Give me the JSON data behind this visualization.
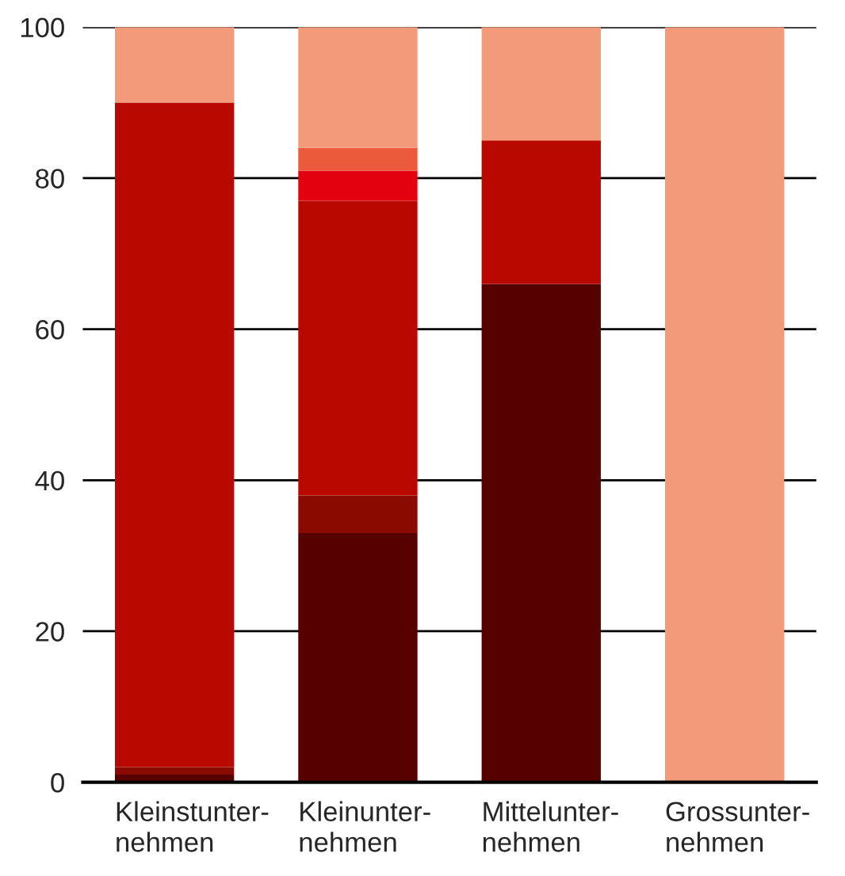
{
  "chart_data": {
    "type": "bar",
    "stacked": true,
    "categories": [
      "Kleinstunter-\nnehmen",
      "Kleinunter-\nnehmen",
      "Mittelunter-\nnehmen",
      "Grossunter-\nnehmen"
    ],
    "series": [
      {
        "color": "#560000",
        "values": [
          1,
          33,
          66,
          0
        ]
      },
      {
        "color": "#8b0a00",
        "values": [
          1,
          5,
          0,
          0
        ]
      },
      {
        "color": "#b80800",
        "values": [
          88,
          39,
          19,
          0
        ]
      },
      {
        "color": "#e3000f",
        "values": [
          0,
          4,
          0,
          0
        ]
      },
      {
        "color": "#ec5a3c",
        "values": [
          0,
          3,
          0,
          0
        ]
      },
      {
        "color": "#f39a7a",
        "values": [
          10,
          16,
          15,
          100
        ]
      }
    ],
    "ylim": [
      0,
      100
    ],
    "yticks": [
      0,
      20,
      40,
      60,
      80,
      100
    ],
    "grid": "y"
  }
}
